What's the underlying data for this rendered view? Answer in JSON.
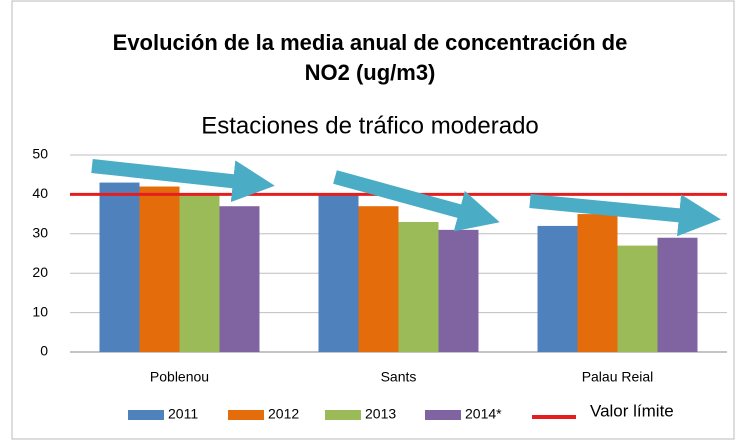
{
  "chart_data": {
    "type": "bar",
    "title": "Evolución de la media anual de concentración de NO2 (ug/m3)",
    "subtitle": "Estaciones de tráfico moderado",
    "categories": [
      "Poblenou",
      "Sants",
      "Palau Reial"
    ],
    "series": [
      {
        "name": "2011",
        "color": "#4f81bd",
        "values": [
          43,
          40,
          32
        ]
      },
      {
        "name": "2012",
        "color": "#e46c0a",
        "values": [
          42,
          37,
          35
        ]
      },
      {
        "name": "2013",
        "color": "#9bbb59",
        "values": [
          40,
          33,
          27
        ]
      },
      {
        "name": "2014*",
        "color": "#8064a2",
        "values": [
          37,
          31,
          29
        ]
      }
    ],
    "reference_line": {
      "name": "Valor límite",
      "value": 40,
      "color": "#e41e1e"
    },
    "ylim": [
      0,
      50
    ],
    "yticks": [
      0,
      10,
      20,
      30,
      40,
      50
    ],
    "grid": true,
    "legend": "bottom"
  }
}
